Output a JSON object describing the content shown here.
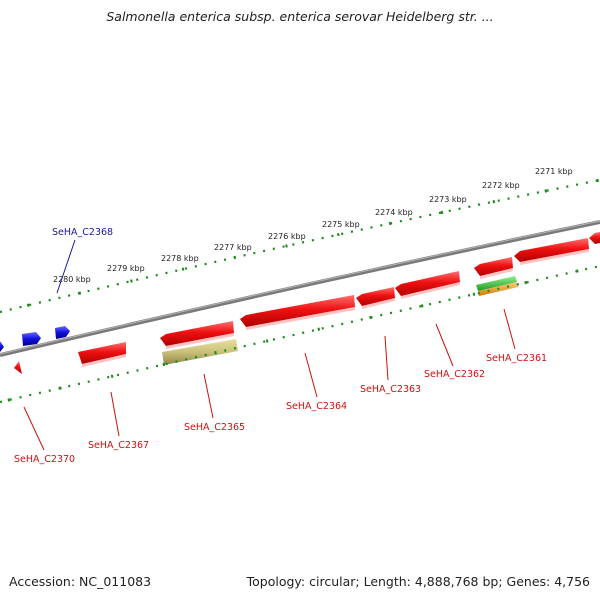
{
  "title": "Salmonella enterica subsp. enterica serovar Heidelberg str. ...",
  "footer": {
    "accession": "Accession: NC_011083",
    "topology": "Topology: circular; Length: 4,888,768 bp; Genes: 4,756"
  },
  "colors": {
    "backbone": "#7a7a7a",
    "ticks": "#1a8a1a",
    "gene_forward": "#1a1acc",
    "gene_reverse": "#e01010",
    "label_forward": "#1a1a99",
    "label_reverse": "#cc1111",
    "track_khaki": "#c9c07a",
    "track_green": "#3ec43e",
    "track_orange": "#f0a020"
  },
  "scale_labels": [
    "2271 kbp",
    "2272 kbp",
    "2273 kbp",
    "2274 kbp",
    "2275 kbp",
    "2276 kbp",
    "2277 kbp",
    "2278 kbp",
    "2279 kbp",
    "2280 kbp"
  ],
  "gene_labels": {
    "g2368": "SeHA_C2368",
    "g2361": "SeHA_C2361",
    "g2362": "SeHA_C2362",
    "g2363": "SeHA_C2363",
    "g2364": "SeHA_C2364",
    "g2365": "SeHA_C2365",
    "g2367": "SeHA_C2367",
    "g2370": "SeHA_C2370"
  }
}
